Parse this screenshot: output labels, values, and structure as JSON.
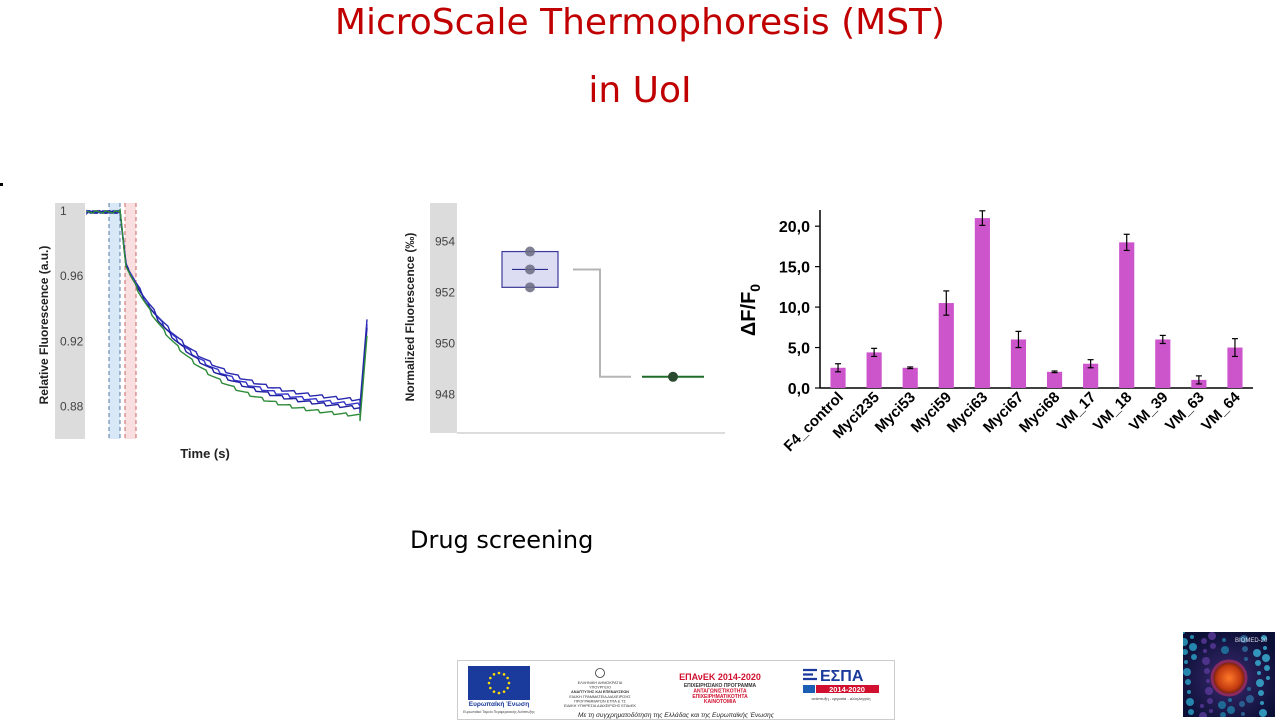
{
  "slide": {
    "title_line1": "MicroScale Thermophoresis (MST)",
    "title_line2": "in UoI",
    "caption": "Drug screening"
  },
  "chart_data": [
    {
      "type": "line",
      "xlabel": "Time (s)",
      "ylabel": "Relative Fluorescence (a.u.)",
      "yticks": [
        "1",
        "0.96",
        "0.92",
        "0.88"
      ],
      "ylim": [
        0.86,
        1.005
      ],
      "grid": false,
      "series_colors": [
        "#2a2ab0",
        "#3535c8",
        "#2020a0",
        "#2e8b3a"
      ],
      "markers": {
        "cold_region_color": "#aaccee",
        "hot_region_color": "#f2b8b8"
      }
    },
    {
      "type": "scatter",
      "ylabel": "Normalized Fluorescence (‰)",
      "yticks": [
        "954",
        "952",
        "950",
        "948"
      ],
      "ylim": [
        946.5,
        955.5
      ],
      "grid": false,
      "groups": [
        {
          "points": [
            953.6,
            952.9,
            952.2
          ],
          "mean": 952.9,
          "color": "#2a2a90"
        },
        {
          "points": [
            948.7
          ],
          "mean": 948.7,
          "color": "#1e6b2a"
        }
      ]
    },
    {
      "type": "bar",
      "ylabel": "ΔF/F0",
      "ylim": [
        0,
        22
      ],
      "yticks": [
        "0,0",
        "5,0",
        "10,0",
        "15,0",
        "20,0"
      ],
      "grid": false,
      "bar_color": "#cc55cc",
      "categories": [
        "F4_control",
        "Myci235",
        "Myci53",
        "Myci59",
        "Myci63",
        "Myci67",
        "Myci68",
        "VM_17",
        "VM_18",
        "VM_39",
        "VM_63",
        "VM_64"
      ],
      "values": [
        2.5,
        4.4,
        2.5,
        10.5,
        21.0,
        6.0,
        2.0,
        3.0,
        18.0,
        6.0,
        1.0,
        5.0
      ],
      "errors": [
        0.5,
        0.5,
        0.1,
        1.5,
        0.9,
        1.0,
        0.1,
        0.5,
        1.0,
        0.5,
        0.5,
        1.1
      ]
    }
  ],
  "footer": {
    "eu_label": "Ευρωπαϊκή Ένωση",
    "eu_sub": "Ευρωπαϊκό Ταμείο Περιφερειακής Ανάπτυξης",
    "ministry_lines": [
      "ΕΛΛΗΝΙΚΗ ΔΗΜΟΚΡΑΤΙΑ",
      "ΥΠΟΥΡΓΕΙΟ",
      "ΑΝΑΠΤΥΞΗΣ ΚΑΙ ΕΠΕΝΔΥΣΕΩΝ",
      "ΕΙΔΙΚΗ ΓΡΑΜΜΑΤΕΙΑ ΔΙΑΧΕΙΡΙΣΗΣ",
      "ΠΡΟΓΡΑΜΜΑΤΩΝ ΕΤΠΑ & ΤΣ",
      "ΕΙΔΙΚΗ ΥΠΗΡΕΣΙΑ ΔΙΑΧΕΙΡΙΣΗΣ ΕΠΑνΕΚ"
    ],
    "epanek_title": "ΕΠΑνΕΚ 2014-2020",
    "epanek_lines": [
      "ΕΠΙΧΕΙΡΗΣΙΑΚΟ ΠΡΟΓΡΑΜΜΑ",
      "ΑΝΤΑΓΩΝΙΣΤΙΚΟΤΗΤΑ",
      "ΕΠΙΧΕΙΡΗΜΑΤΙΚΟΤΗΤΑ",
      "ΚΑΙΝΟΤΟΜΙΑ"
    ],
    "espa_title": "ΕΣΠΑ",
    "espa_years": "2014-2020",
    "espa_slogan": "ανάπτυξη - εργασία - αλληλεγγύη",
    "cofinance": "Με τη συγχρηματοδότηση της Ελλάδας και της Ευρωπαϊκής Ένωσης",
    "badge_text": "BIOMED-20"
  }
}
